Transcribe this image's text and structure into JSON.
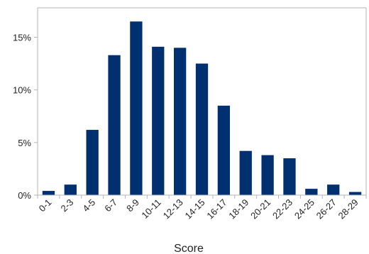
{
  "chart_data": {
    "type": "bar",
    "xlabel": "Score",
    "ylabel": "",
    "title": "",
    "ylim": [
      0,
      17.8
    ],
    "yticks": [
      0,
      5,
      10,
      15
    ],
    "ytick_labels": [
      "0%",
      "5%",
      "10%",
      "15%"
    ],
    "grid": false,
    "legend": "none",
    "bar_color": "#003070",
    "categories": [
      "0-1",
      "2-3",
      "4-5",
      "6-7",
      "8-9",
      "10-11",
      "12-13",
      "14-15",
      "16-17",
      "18-19",
      "20-21",
      "22-23",
      "24-25",
      "26-27",
      "28-29"
    ],
    "values": [
      0.4,
      1.0,
      6.2,
      13.3,
      16.5,
      14.1,
      14.0,
      12.5,
      8.5,
      4.2,
      3.8,
      3.5,
      0.6,
      1.0,
      0.3
    ]
  }
}
